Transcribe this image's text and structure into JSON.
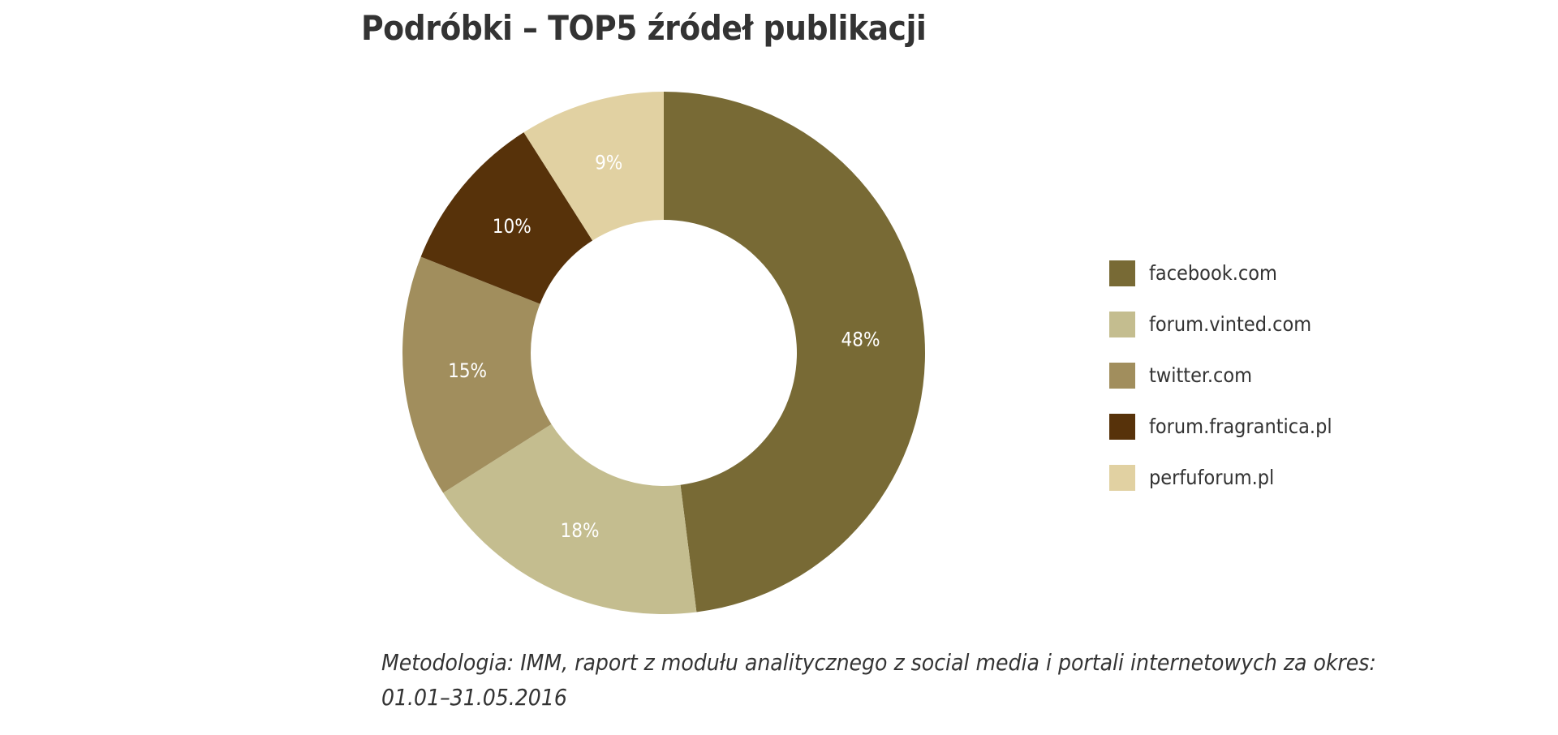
{
  "chart_data": {
    "type": "pie",
    "style": "donut",
    "title": "Podróbki – TOP5 źródeł publikacji",
    "categories": [
      "facebook.com",
      "forum.vinted.com",
      "twitter.com",
      "forum.fragrantica.pl",
      "perfuforum.pl"
    ],
    "values": [
      48,
      18,
      15,
      10,
      9
    ],
    "value_labels": [
      "48%",
      "18%",
      "15%",
      "10%",
      "9%"
    ],
    "colors": [
      "#786a35",
      "#c4bd8f",
      "#a18e5d",
      "#57320a",
      "#e1d1a2"
    ],
    "legend": "right",
    "start_angle": "12 o'clock",
    "direction": "clockwise"
  },
  "footnote": "Metodologia: IMM, raport z modułu analitycznego z social media i portali internetowych za okres: 01.01–31.05.2016"
}
